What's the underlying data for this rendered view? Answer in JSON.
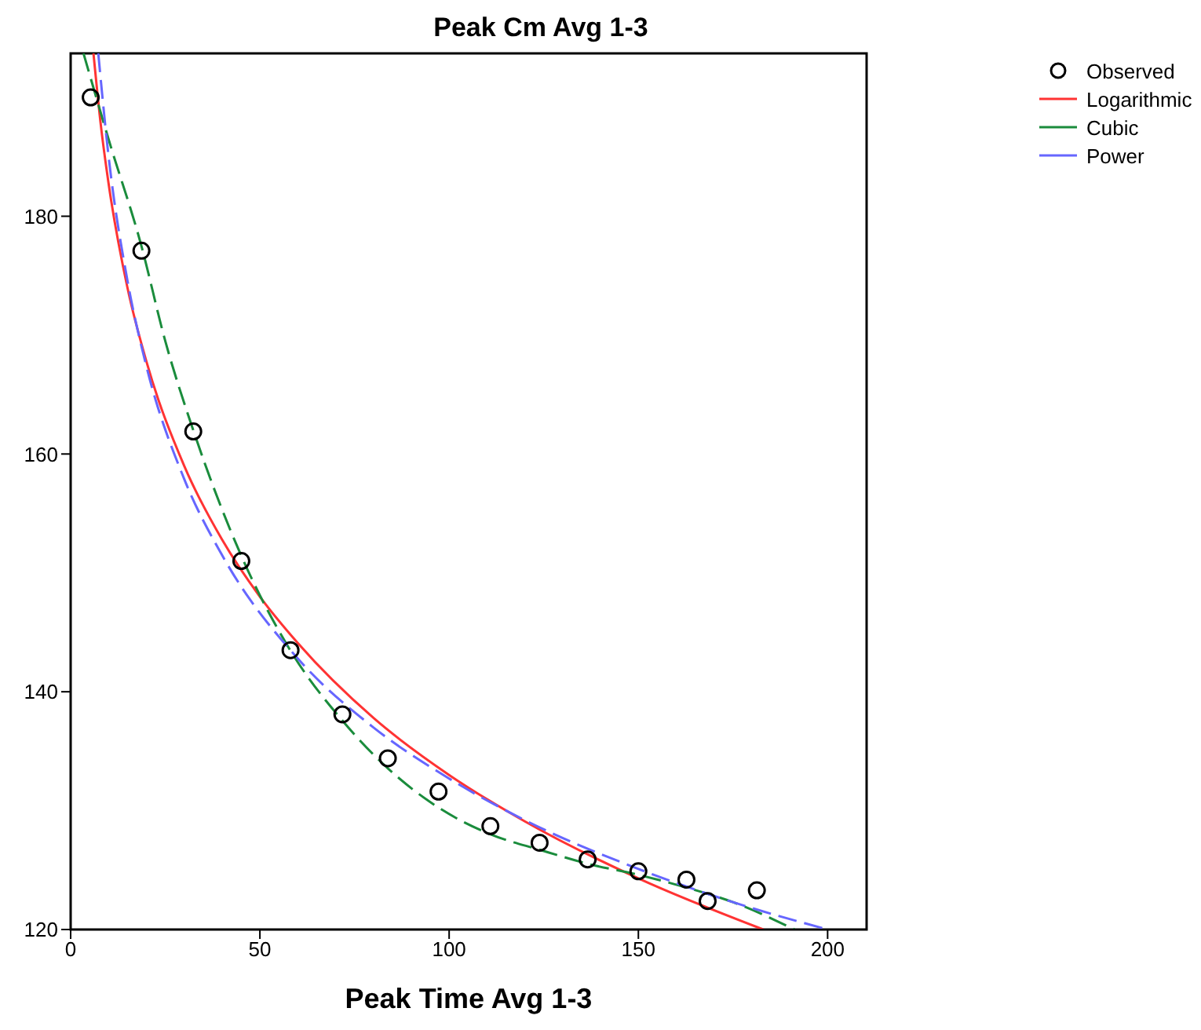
{
  "chart_data": {
    "type": "line",
    "title": "Peak Cm Avg 1-3",
    "xlabel": "Peak Time Avg 1-3",
    "xlim": [
      0,
      210.3
    ],
    "xticks": [
      0,
      50,
      100,
      150,
      200
    ],
    "ylim": [
      120,
      193.7
    ],
    "yticks": [
      120,
      140,
      160,
      180
    ],
    "grid": false,
    "legend": "top right",
    "series": [
      {
        "name": "Observed",
        "type": "scatter",
        "marker": "circle",
        "color": "#000000",
        "x": [
          5.3,
          18.7,
          32.4,
          45.1,
          58.1,
          71.8,
          83.8,
          97.2,
          110.9,
          123.9,
          136.6,
          150,
          162.7,
          168.3,
          181.3
        ],
        "values": [
          190.0,
          177.1,
          161.9,
          151.0,
          143.5,
          138.1,
          134.4,
          131.6,
          128.7,
          127.3,
          125.9,
          124.9,
          124.2,
          122.4,
          123.3
        ]
      },
      {
        "name": "Logarithmic",
        "marker": "none",
        "line_style": "solid",
        "color": "#ff3333",
        "x": [
          6.03,
          8,
          10,
          15,
          20,
          30,
          40,
          50,
          60,
          80,
          100,
          120,
          150,
          183
        ],
        "values": [
          193.7,
          187.6,
          182.8,
          174.0,
          167.8,
          159.0,
          152.8,
          148.0,
          144.1,
          137.8,
          133.0,
          129.1,
          124.3,
          120.0
        ]
      },
      {
        "name": "Cubic",
        "marker": "none",
        "line_style": "dashed",
        "color": "#1a8c3c",
        "x": [
          3.4,
          10,
          18.7,
          25,
          32.4,
          45,
          58,
          72,
          84,
          97,
          111,
          124,
          137,
          150,
          163,
          175,
          191.3
        ],
        "values": [
          193.7,
          186.5,
          177.5,
          169.5,
          162,
          151.5,
          143.5,
          137.5,
          133.5,
          130.3,
          128.0,
          126.7,
          125.5,
          124.6,
          123.5,
          122.3,
          120
        ]
      },
      {
        "name": "Power",
        "marker": "none",
        "line_style": "dashed",
        "color": "#6666ff",
        "x": [
          7.3,
          10,
          15,
          20,
          30,
          40,
          60,
          80,
          100,
          120,
          150,
          175,
          200
        ],
        "values": [
          193.7,
          185.1,
          174.6,
          167.4,
          157.9,
          151.5,
          142.8,
          137.0,
          132.7,
          129.2,
          125.1,
          122.3,
          120
        ]
      }
    ]
  }
}
